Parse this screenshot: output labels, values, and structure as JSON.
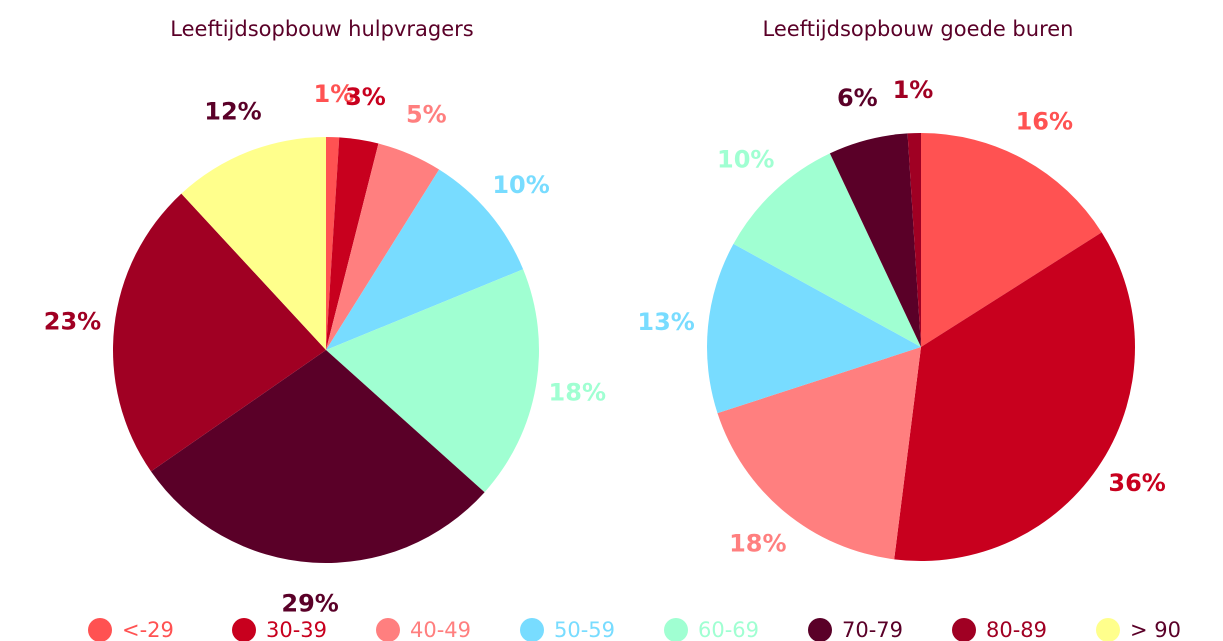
{
  "chart_data": [
    {
      "type": "pie",
      "title": "Leeftijdsopbouw hulpvragers",
      "values": [
        1,
        3,
        5,
        10,
        18,
        29,
        23,
        12
      ],
      "value_labels": [
        "1%",
        "3%",
        "5%",
        "10%",
        "18%",
        "29%",
        "23%",
        "12%"
      ]
    },
    {
      "type": "pie",
      "title": "Leeftijdsopbouw goede buren",
      "values": [
        16,
        36,
        18,
        13,
        10,
        6,
        1
      ],
      "value_labels": [
        "16%",
        "36%",
        "18%",
        "13%",
        "10%",
        "6%",
        "1%"
      ]
    }
  ],
  "legend": {
    "categories": [
      "<-29",
      "30-39",
      "40-49",
      "50-59",
      "60-69",
      "70-79",
      "80-89",
      "> 90"
    ],
    "colors": [
      "#ff5252",
      "#c8001e",
      "#ff7f7f",
      "#78dcff",
      "#a0ffd2",
      "#5a0028",
      "#a00023",
      "#ffff8c"
    ],
    "text_colors": [
      "#ff5252",
      "#c8001e",
      "#ff7f7f",
      "#78dcff",
      "#a0ffd2",
      "#5a0028",
      "#a00023",
      "#5a0028"
    ]
  }
}
